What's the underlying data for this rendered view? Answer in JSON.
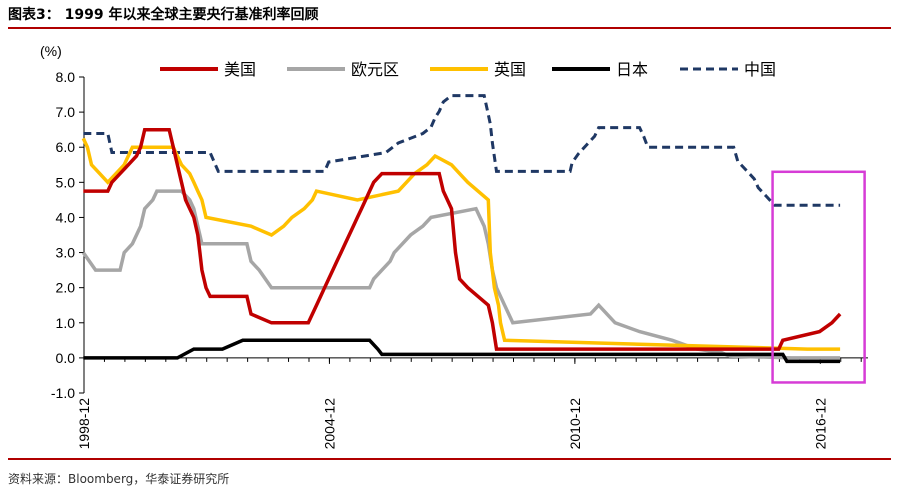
{
  "figure": {
    "title": "图表3： 1999 年以来全球主要央行基准利率回顾",
    "source": "资料来源：Bloomberg，华泰证券研究所"
  },
  "colors": {
    "rule": "#b00000",
    "highlight_box": "#d63cd6"
  },
  "chart_data": {
    "type": "line",
    "ylabel": "(%)",
    "ylim": [
      -1.0,
      8.0
    ],
    "yticks": [
      "-1.0",
      "0.0",
      "1.0",
      "2.0",
      "3.0",
      "4.0",
      "5.0",
      "6.0",
      "7.0",
      "8.0"
    ],
    "xlim": [
      1998.917,
      2018.083
    ],
    "xticks": [
      {
        "label": "1998-12",
        "x": 1998.917
      },
      {
        "label": "2004-12",
        "x": 2004.917
      },
      {
        "label": "2010-12",
        "x": 2010.917
      },
      {
        "label": "2016-12",
        "x": 2016.917
      }
    ],
    "grid": false,
    "legend_position": "top",
    "highlight_box": {
      "x": [
        2015.75,
        2018.0
      ],
      "y": [
        -0.7,
        5.3
      ]
    },
    "series": [
      {
        "name": "美国",
        "color": "#c00000",
        "style": "solid",
        "points": [
          [
            1998.9,
            4.75
          ],
          [
            1999.5,
            4.75
          ],
          [
            1999.6,
            5.0
          ],
          [
            1999.8,
            5.25
          ],
          [
            2000.0,
            5.5
          ],
          [
            2000.2,
            5.75
          ],
          [
            2000.3,
            6.0
          ],
          [
            2000.4,
            6.5
          ],
          [
            2001.0,
            6.5
          ],
          [
            2001.1,
            6.0
          ],
          [
            2001.2,
            5.5
          ],
          [
            2001.3,
            5.0
          ],
          [
            2001.4,
            4.5
          ],
          [
            2001.6,
            4.0
          ],
          [
            2001.7,
            3.5
          ],
          [
            2001.75,
            3.0
          ],
          [
            2001.8,
            2.5
          ],
          [
            2001.9,
            2.0
          ],
          [
            2002.0,
            1.75
          ],
          [
            2002.9,
            1.75
          ],
          [
            2003.0,
            1.25
          ],
          [
            2003.5,
            1.0
          ],
          [
            2004.4,
            1.0
          ],
          [
            2004.5,
            1.25
          ],
          [
            2004.6,
            1.5
          ],
          [
            2004.7,
            1.75
          ],
          [
            2004.8,
            2.0
          ],
          [
            2004.9,
            2.25
          ],
          [
            2005.0,
            2.5
          ],
          [
            2005.1,
            2.75
          ],
          [
            2005.2,
            3.0
          ],
          [
            2005.3,
            3.25
          ],
          [
            2005.4,
            3.5
          ],
          [
            2005.5,
            3.75
          ],
          [
            2005.6,
            4.0
          ],
          [
            2005.7,
            4.25
          ],
          [
            2005.8,
            4.5
          ],
          [
            2005.9,
            4.75
          ],
          [
            2006.0,
            5.0
          ],
          [
            2006.2,
            5.25
          ],
          [
            2007.6,
            5.25
          ],
          [
            2007.7,
            4.75
          ],
          [
            2007.8,
            4.5
          ],
          [
            2007.9,
            4.25
          ],
          [
            2008.0,
            3.0
          ],
          [
            2008.1,
            2.25
          ],
          [
            2008.3,
            2.0
          ],
          [
            2008.8,
            1.5
          ],
          [
            2008.9,
            1.0
          ],
          [
            2009.0,
            0.25
          ],
          [
            2015.9,
            0.25
          ],
          [
            2016.0,
            0.5
          ],
          [
            2016.9,
            0.75
          ],
          [
            2017.2,
            1.0
          ],
          [
            2017.4,
            1.25
          ]
        ]
      },
      {
        "name": "欧元区",
        "color": "#a6a6a6",
        "style": "solid",
        "points": [
          [
            1998.9,
            3.0
          ],
          [
            1999.2,
            2.5
          ],
          [
            1999.8,
            2.5
          ],
          [
            1999.9,
            3.0
          ],
          [
            2000.1,
            3.25
          ],
          [
            2000.2,
            3.5
          ],
          [
            2000.3,
            3.75
          ],
          [
            2000.4,
            4.25
          ],
          [
            2000.6,
            4.5
          ],
          [
            2000.7,
            4.75
          ],
          [
            2001.3,
            4.75
          ],
          [
            2001.5,
            4.5
          ],
          [
            2001.6,
            4.25
          ],
          [
            2001.7,
            3.75
          ],
          [
            2001.8,
            3.25
          ],
          [
            2002.9,
            3.25
          ],
          [
            2003.0,
            2.75
          ],
          [
            2003.2,
            2.5
          ],
          [
            2003.5,
            2.0
          ],
          [
            2005.9,
            2.0
          ],
          [
            2006.0,
            2.25
          ],
          [
            2006.2,
            2.5
          ],
          [
            2006.4,
            2.75
          ],
          [
            2006.5,
            3.0
          ],
          [
            2006.7,
            3.25
          ],
          [
            2006.9,
            3.5
          ],
          [
            2007.2,
            3.75
          ],
          [
            2007.4,
            4.0
          ],
          [
            2008.5,
            4.25
          ],
          [
            2008.7,
            3.75
          ],
          [
            2008.8,
            3.25
          ],
          [
            2008.9,
            2.5
          ],
          [
            2009.0,
            2.0
          ],
          [
            2009.2,
            1.5
          ],
          [
            2009.3,
            1.25
          ],
          [
            2009.4,
            1.0
          ],
          [
            2011.3,
            1.25
          ],
          [
            2011.5,
            1.5
          ],
          [
            2011.9,
            1.0
          ],
          [
            2012.5,
            0.75
          ],
          [
            2013.3,
            0.5
          ],
          [
            2013.9,
            0.25
          ],
          [
            2014.5,
            0.15
          ],
          [
            2014.7,
            0.05
          ],
          [
            2016.2,
            0.0
          ],
          [
            2017.4,
            0.0
          ]
        ]
      },
      {
        "name": "英国",
        "color": "#ffc000",
        "style": "solid",
        "points": [
          [
            1998.9,
            6.25
          ],
          [
            1999.0,
            6.0
          ],
          [
            1999.1,
            5.5
          ],
          [
            1999.3,
            5.25
          ],
          [
            1999.5,
            5.0
          ],
          [
            1999.7,
            5.25
          ],
          [
            1999.9,
            5.5
          ],
          [
            2000.0,
            5.75
          ],
          [
            2000.1,
            6.0
          ],
          [
            2001.1,
            6.0
          ],
          [
            2001.2,
            5.75
          ],
          [
            2001.3,
            5.5
          ],
          [
            2001.5,
            5.25
          ],
          [
            2001.6,
            5.0
          ],
          [
            2001.7,
            4.75
          ],
          [
            2001.8,
            4.5
          ],
          [
            2001.9,
            4.0
          ],
          [
            2003.0,
            3.75
          ],
          [
            2003.5,
            3.5
          ],
          [
            2003.8,
            3.75
          ],
          [
            2004.0,
            4.0
          ],
          [
            2004.3,
            4.25
          ],
          [
            2004.5,
            4.5
          ],
          [
            2004.6,
            4.75
          ],
          [
            2005.6,
            4.5
          ],
          [
            2006.6,
            4.75
          ],
          [
            2006.8,
            5.0
          ],
          [
            2007.0,
            5.25
          ],
          [
            2007.3,
            5.5
          ],
          [
            2007.5,
            5.75
          ],
          [
            2007.9,
            5.5
          ],
          [
            2008.1,
            5.25
          ],
          [
            2008.3,
            5.0
          ],
          [
            2008.8,
            4.5
          ],
          [
            2008.85,
            3.0
          ],
          [
            2008.95,
            2.0
          ],
          [
            2009.05,
            1.5
          ],
          [
            2009.1,
            1.0
          ],
          [
            2009.2,
            0.5
          ],
          [
            2016.6,
            0.25
          ],
          [
            2017.4,
            0.25
          ]
        ]
      },
      {
        "name": "日本",
        "color": "#000000",
        "style": "solid",
        "points": [
          [
            1998.9,
            0.0
          ],
          [
            2001.2,
            0.0
          ],
          [
            2001.6,
            0.25
          ],
          [
            2002.3,
            0.25
          ],
          [
            2002.8,
            0.5
          ],
          [
            2005.9,
            0.5
          ],
          [
            2006.1,
            0.25
          ],
          [
            2006.2,
            0.1
          ],
          [
            2016.0,
            0.1
          ],
          [
            2016.1,
            -0.1
          ],
          [
            2017.4,
            -0.1
          ]
        ]
      },
      {
        "name": "中国",
        "color": "#1f3864",
        "style": "dashed",
        "points": [
          [
            1998.9,
            6.39
          ],
          [
            1999.5,
            6.39
          ],
          [
            1999.6,
            5.85
          ],
          [
            2002.0,
            5.85
          ],
          [
            2002.2,
            5.31
          ],
          [
            2004.8,
            5.31
          ],
          [
            2004.9,
            5.58
          ],
          [
            2006.3,
            5.85
          ],
          [
            2006.6,
            6.12
          ],
          [
            2007.2,
            6.39
          ],
          [
            2007.4,
            6.57
          ],
          [
            2007.5,
            6.84
          ],
          [
            2007.6,
            7.02
          ],
          [
            2007.7,
            7.29
          ],
          [
            2007.9,
            7.47
          ],
          [
            2008.7,
            7.47
          ],
          [
            2008.8,
            6.93
          ],
          [
            2008.85,
            6.66
          ],
          [
            2008.9,
            6.12
          ],
          [
            2009.0,
            5.31
          ],
          [
            2010.8,
            5.31
          ],
          [
            2010.85,
            5.56
          ],
          [
            2011.0,
            5.81
          ],
          [
            2011.2,
            6.06
          ],
          [
            2011.4,
            6.31
          ],
          [
            2011.5,
            6.56
          ],
          [
            2012.5,
            6.56
          ],
          [
            2012.6,
            6.31
          ],
          [
            2012.7,
            6.0
          ],
          [
            2014.8,
            6.0
          ],
          [
            2014.9,
            5.6
          ],
          [
            2015.1,
            5.35
          ],
          [
            2015.3,
            5.1
          ],
          [
            2015.4,
            4.85
          ],
          [
            2015.6,
            4.6
          ],
          [
            2015.8,
            4.35
          ],
          [
            2017.4,
            4.35
          ]
        ]
      }
    ]
  }
}
